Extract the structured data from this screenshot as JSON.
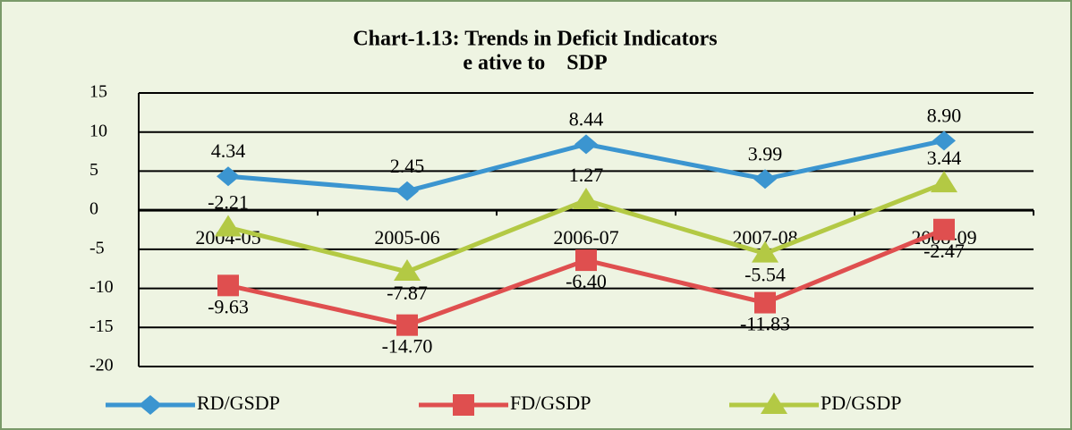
{
  "chart_data": {
    "type": "line",
    "title": "Chart-1.13: Trends in Deficit Indicators",
    "subtitle": "e ative to    SDP",
    "categories": [
      "2004-05",
      "2005-06",
      "2006-07",
      "2007-08",
      "2008-09"
    ],
    "series": [
      {
        "name": "RD/GSDP",
        "color": "#3b95d0",
        "marker": "diamond",
        "values": [
          4.34,
          2.45,
          8.44,
          3.99,
          8.9
        ],
        "value_labels": [
          "4.34",
          "2.45",
          "8.44",
          "3.99",
          "8.90"
        ]
      },
      {
        "name": "FD/GSDP",
        "color": "#df4f4f",
        "marker": "square",
        "values": [
          -9.63,
          -14.7,
          -6.4,
          -11.83,
          -2.47
        ],
        "value_labels": [
          "-9.63",
          "-14.70",
          "-6.40",
          "-11.83",
          "-2.47"
        ]
      },
      {
        "name": "PD/GSDP",
        "color": "#b3c944",
        "marker": "triangle",
        "values": [
          -2.21,
          -7.87,
          1.27,
          -5.54,
          3.44
        ],
        "value_labels": [
          "-2.21",
          "-7.87",
          "1.27",
          "-5.54",
          "3.44"
        ]
      }
    ],
    "ylim": [
      -20,
      15
    ],
    "yticks": [
      -20,
      -15,
      -10,
      -5,
      0,
      5,
      10,
      15
    ],
    "grid": true,
    "legend": "bottom"
  }
}
